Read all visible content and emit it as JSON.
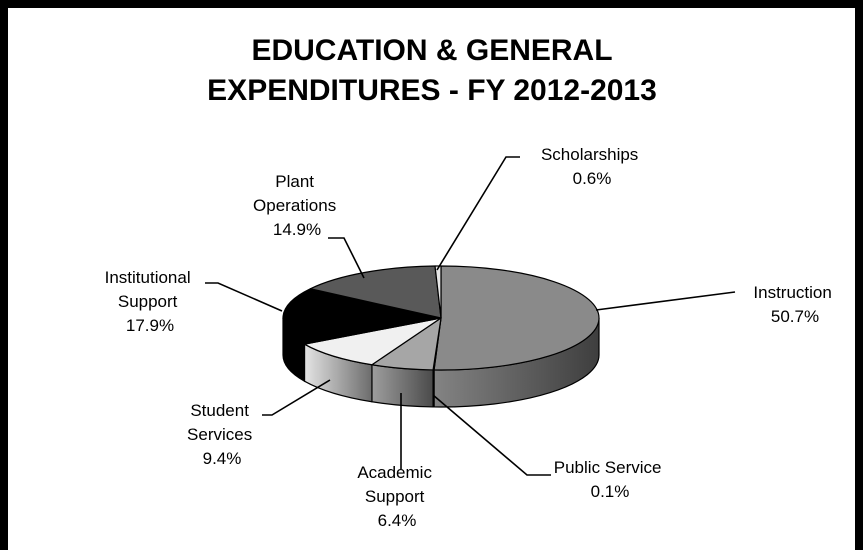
{
  "chart_data": {
    "type": "pie",
    "title_lines": [
      "EDUCATION & GENERAL",
      "EXPENDITURES - FY 2012-2013"
    ],
    "slices": [
      {
        "label": "Instruction",
        "value": 50.7,
        "value_text": "50.7%",
        "color": "#8a8a8a"
      },
      {
        "label": "Public Service",
        "value": 0.1,
        "value_text": "0.1%",
        "color": "#7a7a7a"
      },
      {
        "label": "Academic Support",
        "value": 6.4,
        "value_text": "6.4%",
        "color": "#a6a6a6"
      },
      {
        "label": "Student Services",
        "value": 9.4,
        "value_text": "9.4%",
        "color": "#f0f0f0"
      },
      {
        "label": "Institutional Support",
        "value": 17.9,
        "value_text": "17.9%",
        "color": "#000000"
      },
      {
        "label": "Plant Operations",
        "value": 14.9,
        "value_text": "14.9%",
        "color": "#595959"
      },
      {
        "label": "Scholarships",
        "value": 0.6,
        "value_text": "0.6%",
        "color": "#e6e6e6"
      }
    ]
  },
  "labels": [
    {
      "lines": [
        "Instruction",
        "50.7%"
      ]
    },
    {
      "lines": [
        "Public Service",
        "0.1%"
      ]
    },
    {
      "lines": [
        "Academic",
        "Support",
        "6.4%"
      ]
    },
    {
      "lines": [
        "Student",
        "Services",
        "9.4%"
      ]
    },
    {
      "lines": [
        "Institutional",
        "Support",
        "17.9%"
      ]
    },
    {
      "lines": [
        "Plant",
        "Operations",
        "14.9%"
      ]
    },
    {
      "lines": [
        "Scholarships",
        "0.6%"
      ]
    }
  ]
}
